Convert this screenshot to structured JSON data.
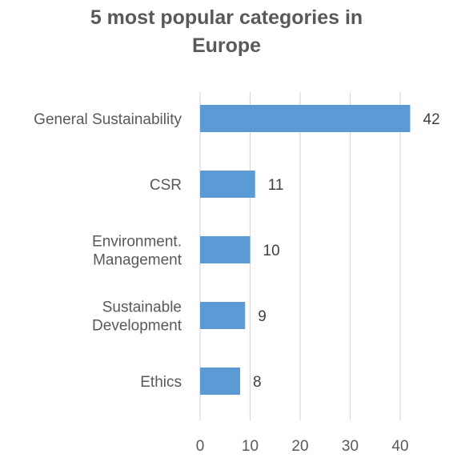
{
  "chart_data": {
    "type": "bar",
    "orientation": "horizontal",
    "title_lines": [
      "5 most popular categories in",
      "Europe"
    ],
    "categories": [
      [
        "General Sustainability"
      ],
      [
        "CSR"
      ],
      [
        "Environment.",
        "Management"
      ],
      [
        "Sustainable",
        "Development"
      ],
      [
        "Ethics"
      ]
    ],
    "values": [
      42,
      11,
      10,
      9,
      8
    ],
    "data_labels": [
      "42",
      "11",
      "10",
      "9",
      "8"
    ],
    "xlim": [
      0,
      45
    ],
    "xticks": [
      0,
      10,
      20,
      30,
      40
    ],
    "xtick_labels": [
      "0",
      "10",
      "20",
      "30",
      "40"
    ],
    "gridlines": true,
    "legend": "none",
    "bar_color": "#5b9bd5",
    "grid_color": "#d9d9d9",
    "text_color": "#595959"
  }
}
